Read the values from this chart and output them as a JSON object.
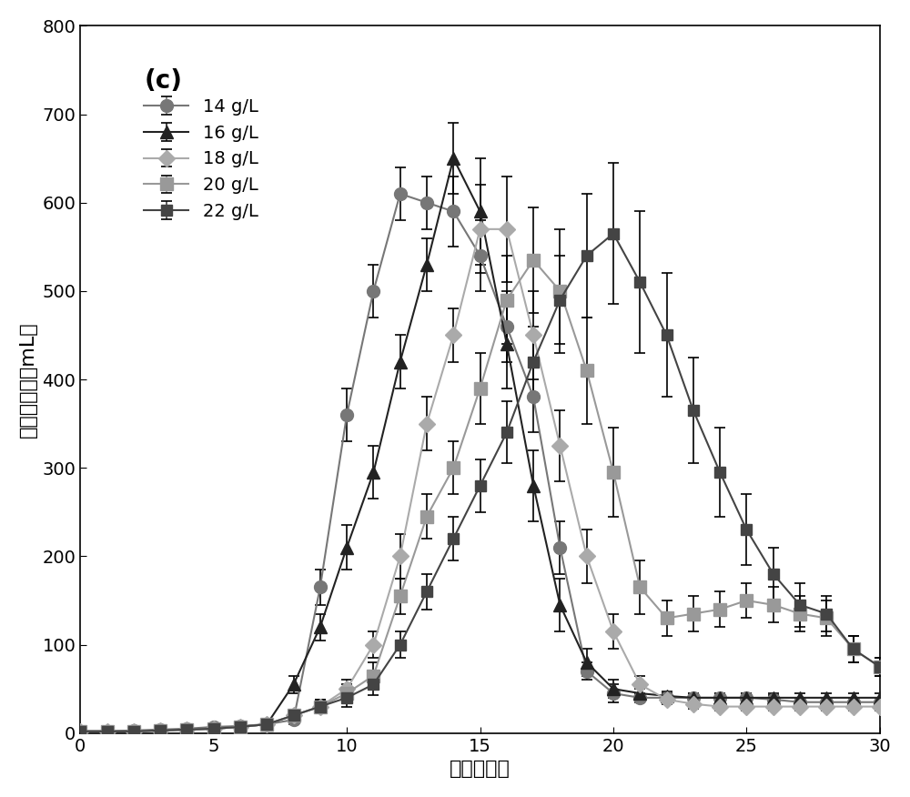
{
  "title": "(c)",
  "xlabel": "时间（天）",
  "ylabel": "甲烷日产量（mL）",
  "xlim": [
    0,
    30
  ],
  "ylim": [
    0,
    800
  ],
  "xticks": [
    0,
    5,
    10,
    15,
    20,
    25,
    30
  ],
  "yticks": [
    0,
    100,
    200,
    300,
    400,
    500,
    600,
    700,
    800
  ],
  "series": [
    {
      "label": "14 g/L",
      "color": "#777777",
      "marker": "o",
      "markersize": 10,
      "linewidth": 1.5,
      "x": [
        0,
        1,
        2,
        3,
        4,
        5,
        6,
        7,
        8,
        9,
        10,
        11,
        12,
        13,
        14,
        15,
        16,
        17,
        18,
        19,
        20,
        21,
        22,
        23,
        24,
        25,
        26,
        27,
        28,
        29,
        30
      ],
      "y": [
        2,
        2,
        3,
        4,
        5,
        7,
        8,
        10,
        15,
        165,
        360,
        500,
        610,
        600,
        590,
        540,
        460,
        380,
        210,
        70,
        45,
        40,
        40,
        40,
        40,
        40,
        38,
        35,
        35,
        35,
        35
      ],
      "yerr": [
        1,
        1,
        1,
        1,
        1,
        3,
        3,
        5,
        5,
        20,
        30,
        30,
        30,
        30,
        40,
        40,
        40,
        40,
        30,
        10,
        10,
        5,
        5,
        5,
        5,
        5,
        5,
        5,
        5,
        5,
        5
      ]
    },
    {
      "label": "16 g/L",
      "color": "#222222",
      "marker": "^",
      "markersize": 10,
      "linewidth": 1.5,
      "x": [
        0,
        1,
        2,
        3,
        4,
        5,
        6,
        7,
        8,
        9,
        10,
        11,
        12,
        13,
        14,
        15,
        16,
        17,
        18,
        19,
        20,
        21,
        22,
        23,
        24,
        25,
        26,
        27,
        28,
        29,
        30
      ],
      "y": [
        2,
        2,
        2,
        3,
        4,
        5,
        7,
        10,
        55,
        120,
        210,
        295,
        420,
        530,
        650,
        590,
        440,
        280,
        145,
        80,
        50,
        45,
        42,
        40,
        40,
        40,
        40,
        40,
        40,
        40,
        40
      ],
      "yerr": [
        1,
        1,
        1,
        1,
        1,
        2,
        2,
        5,
        10,
        15,
        25,
        30,
        30,
        30,
        40,
        60,
        50,
        40,
        30,
        15,
        10,
        5,
        5,
        5,
        5,
        5,
        5,
        5,
        5,
        5,
        5
      ]
    },
    {
      "label": "18 g/L",
      "color": "#aaaaaa",
      "marker": "D",
      "markersize": 9,
      "linewidth": 1.5,
      "x": [
        0,
        1,
        2,
        3,
        4,
        5,
        6,
        7,
        8,
        9,
        10,
        11,
        12,
        13,
        14,
        15,
        16,
        17,
        18,
        19,
        20,
        21,
        22,
        23,
        24,
        25,
        26,
        27,
        28,
        29,
        30
      ],
      "y": [
        2,
        2,
        2,
        3,
        4,
        5,
        7,
        10,
        20,
        30,
        50,
        100,
        200,
        350,
        450,
        570,
        570,
        450,
        325,
        200,
        115,
        55,
        38,
        33,
        30,
        30,
        30,
        30,
        30,
        30,
        30
      ],
      "yerr": [
        1,
        1,
        1,
        1,
        1,
        2,
        2,
        5,
        5,
        8,
        10,
        15,
        25,
        30,
        30,
        50,
        60,
        50,
        40,
        30,
        20,
        10,
        5,
        5,
        5,
        5,
        5,
        5,
        5,
        5,
        5
      ]
    },
    {
      "label": "20 g/L",
      "color": "#999999",
      "marker": "s",
      "markersize": 10,
      "linewidth": 1.5,
      "x": [
        0,
        1,
        2,
        3,
        4,
        5,
        6,
        7,
        8,
        9,
        10,
        11,
        12,
        13,
        14,
        15,
        16,
        17,
        18,
        19,
        20,
        21,
        22,
        23,
        24,
        25,
        26,
        27,
        28,
        29,
        30
      ],
      "y": [
        2,
        2,
        2,
        3,
        4,
        5,
        7,
        10,
        20,
        30,
        45,
        65,
        155,
        245,
        300,
        390,
        490,
        535,
        500,
        410,
        295,
        165,
        130,
        135,
        140,
        150,
        145,
        135,
        130,
        95,
        75
      ],
      "yerr": [
        1,
        1,
        1,
        1,
        1,
        2,
        2,
        5,
        5,
        8,
        10,
        15,
        20,
        25,
        30,
        40,
        50,
        60,
        70,
        60,
        50,
        30,
        20,
        20,
        20,
        20,
        20,
        20,
        20,
        15,
        10
      ]
    },
    {
      "label": "22 g/L",
      "color": "#444444",
      "marker": "s",
      "markersize": 8,
      "linewidth": 1.5,
      "x": [
        0,
        1,
        2,
        3,
        4,
        5,
        6,
        7,
        8,
        9,
        10,
        11,
        12,
        13,
        14,
        15,
        16,
        17,
        18,
        19,
        20,
        21,
        22,
        23,
        24,
        25,
        26,
        27,
        28,
        29,
        30
      ],
      "y": [
        2,
        2,
        2,
        3,
        4,
        5,
        7,
        10,
        20,
        30,
        40,
        55,
        100,
        160,
        220,
        280,
        340,
        420,
        490,
        540,
        565,
        510,
        450,
        365,
        295,
        230,
        180,
        145,
        135,
        95,
        75
      ],
      "yerr": [
        1,
        1,
        1,
        1,
        1,
        2,
        2,
        5,
        5,
        8,
        10,
        12,
        15,
        20,
        25,
        30,
        35,
        40,
        50,
        70,
        80,
        80,
        70,
        60,
        50,
        40,
        30,
        25,
        20,
        15,
        10
      ]
    }
  ],
  "background_color": "#ffffff",
  "legend_fontsize": 14,
  "axis_fontsize": 16,
  "title_fontsize": 20,
  "tick_fontsize": 14
}
